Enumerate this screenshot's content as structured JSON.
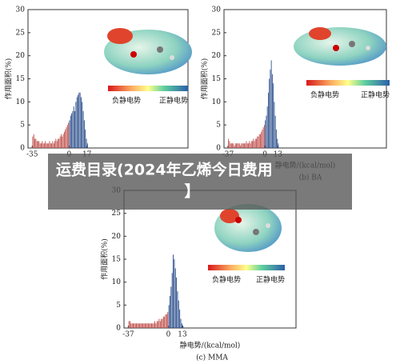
{
  "chart_data": [
    {
      "type": "histogram",
      "ylabel": "作用面积(%)",
      "legend": [
        "负静电势",
        "正静电势"
      ],
      "xlim": [
        -39,
        113
      ],
      "ylim": [
        0,
        30
      ],
      "xticks": [
        -35,
        0,
        17
      ],
      "yticks": [
        0,
        5,
        10,
        15,
        20,
        25,
        30
      ],
      "color": "#2b4f8c",
      "negative_color": "#c0504d",
      "bins": [
        -35,
        -34,
        -33,
        -32,
        -31,
        -30,
        -29,
        -28,
        -27,
        -26,
        -25,
        -24,
        -23,
        -22,
        -21,
        -20,
        -19,
        -18,
        -17,
        -16,
        -15,
        -14,
        -13,
        -12,
        -11,
        -10,
        -9,
        -8,
        -7,
        -6,
        -5,
        -4,
        -3,
        -2,
        -1,
        0,
        1,
        2,
        3,
        4,
        5,
        6,
        7,
        8,
        9,
        10,
        11,
        12,
        13,
        14,
        15,
        16,
        17,
        18
      ],
      "values": [
        2.5,
        3,
        2,
        2,
        1.5,
        1.5,
        1.5,
        1,
        1,
        1.5,
        1,
        1,
        1.5,
        1,
        1,
        1,
        1.5,
        1,
        1,
        1.5,
        1,
        1.5,
        2,
        1.5,
        2,
        2,
        2.5,
        3,
        2.5,
        3,
        3.5,
        4,
        4.5,
        5,
        5.5,
        6,
        7,
        7.5,
        8,
        9,
        8,
        10,
        11,
        11.5,
        12,
        12,
        11,
        10,
        8,
        6,
        4,
        2,
        1
      ]
    },
    {
      "type": "histogram",
      "ylabel": "作用面积(%)",
      "xlabel": "静电势/(kcal/mol)",
      "caption": "(b) BA",
      "legend": [
        "负静电势",
        "正静电势"
      ],
      "xlim": [
        -41,
        122
      ],
      "ylim": [
        0,
        30
      ],
      "xticks": [
        -37,
        0,
        13
      ],
      "yticks": [
        0,
        5,
        10,
        15,
        20,
        25,
        30
      ],
      "color": "#2b4f8c",
      "negative_color": "#c0504d",
      "bins": [
        -37,
        -36,
        -35,
        -34,
        -33,
        -32,
        -31,
        -30,
        -29,
        -28,
        -27,
        -26,
        -25,
        -24,
        -23,
        -22,
        -21,
        -20,
        -19,
        -18,
        -17,
        -16,
        -15,
        -14,
        -13,
        -12,
        -11,
        -10,
        -9,
        -8,
        -7,
        -6,
        -5,
        -4,
        -3,
        -2,
        -1,
        0,
        1,
        2,
        3,
        4,
        5,
        6,
        7,
        8,
        9,
        10,
        11,
        12,
        13,
        14
      ],
      "values": [
        2,
        1.5,
        1,
        1,
        1,
        1,
        0.5,
        1,
        1,
        1,
        1,
        1,
        0.5,
        1,
        1,
        1,
        1,
        1,
        1.5,
        1,
        1,
        1.5,
        1,
        1.5,
        1.5,
        2,
        1.5,
        2,
        2,
        2.5,
        2.5,
        3,
        3,
        3.5,
        4,
        4.5,
        5,
        6,
        7,
        9,
        12,
        15,
        17,
        19,
        16,
        14,
        10,
        7,
        4,
        2,
        1
      ]
    },
    {
      "type": "histogram",
      "ylabel": "作用面积(%)",
      "xlabel": "静电势/(kcal/mol)",
      "caption": "(c) MMA",
      "legend": [
        "负静电势",
        "正静电势"
      ],
      "xlim": [
        -41,
        118
      ],
      "ylim": [
        0,
        30
      ],
      "xticks": [
        -37,
        0,
        13
      ],
      "yticks": [
        0,
        5,
        10,
        15,
        20,
        25,
        30
      ],
      "color": "#2b4f8c",
      "negative_color": "#c0504d",
      "bins": [
        -37,
        -36,
        -35,
        -34,
        -33,
        -32,
        -31,
        -30,
        -29,
        -28,
        -27,
        -26,
        -25,
        -24,
        -23,
        -22,
        -21,
        -20,
        -19,
        -18,
        -17,
        -16,
        -15,
        -14,
        -13,
        -12,
        -11,
        -10,
        -9,
        -8,
        -7,
        -6,
        -5,
        -4,
        -3,
        -2,
        -1,
        0,
        1,
        2,
        3,
        4,
        5,
        6,
        7,
        8,
        9,
        10,
        11,
        12,
        13,
        14
      ],
      "values": [
        1.5,
        1.5,
        1,
        1,
        1,
        1,
        1,
        1,
        1,
        1,
        1,
        1,
        1,
        1,
        1,
        1,
        1,
        1,
        1,
        1,
        1,
        1,
        1,
        1,
        1.5,
        1,
        1.5,
        1.5,
        2,
        1.5,
        2,
        2,
        2.5,
        2.5,
        3,
        3,
        3.5,
        5,
        7,
        9,
        12,
        16,
        15,
        13,
        11,
        8,
        6,
        4,
        2,
        1,
        0.5
      ]
    }
  ],
  "banner": {
    "title": "运费目录(2024年乙烯今日费用",
    "subtitle": "】"
  }
}
